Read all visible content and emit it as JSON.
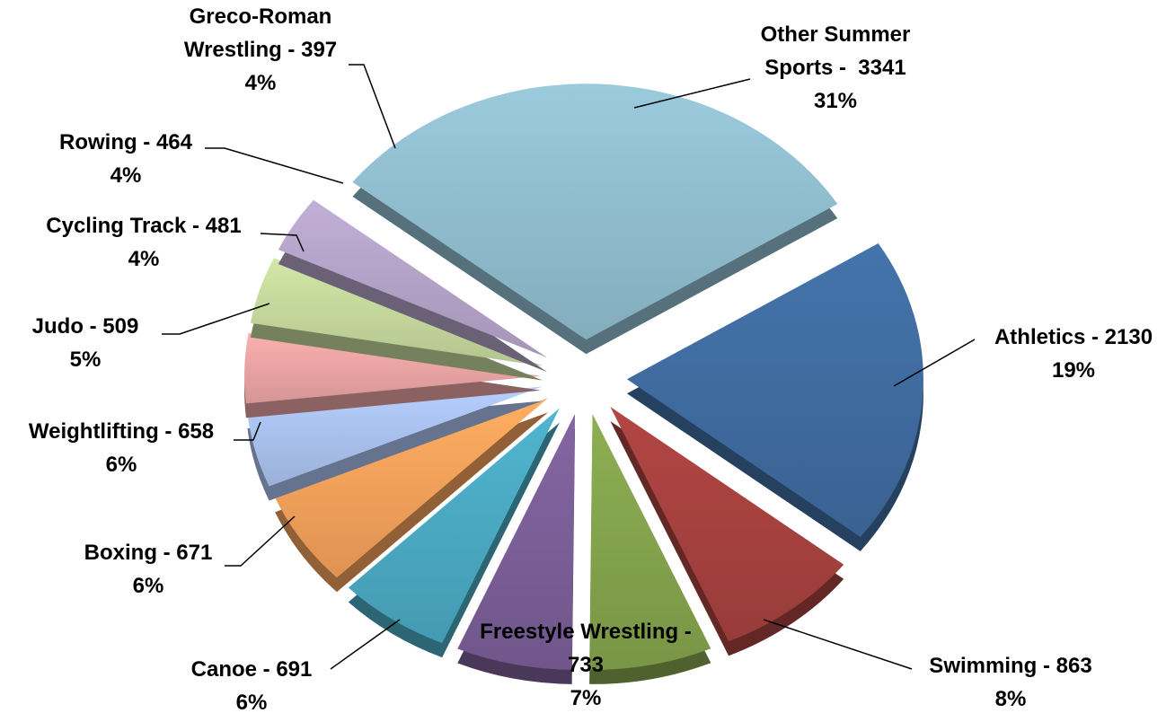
{
  "chart_data": {
    "type": "pie",
    "labels": [
      "Other Summer Sports -  3341",
      "Athletics -  2130",
      "Swimming - 863",
      "Freestyle Wrestling - 733",
      "Canoe - 691",
      "Boxing - 671",
      "Weightlifting - 658",
      "Judo - 509",
      "Cycling Track - 481",
      "Rowing - 464",
      "Greco-Roman Wrestling - 397"
    ],
    "values": [
      3341,
      2130,
      863,
      733,
      691,
      671,
      658,
      509,
      481,
      464,
      397
    ],
    "percent_labels": [
      "31%",
      "19%",
      "8%",
      "7%",
      "6%",
      "6%",
      "6%",
      "5%",
      "4%",
      "4%",
      "4%"
    ],
    "colors": [
      "#8fbccd",
      "#3f6b9f",
      "#a5413e",
      "#83a24c",
      "#7a5e96",
      "#4aa8c0",
      "#f2a05a",
      "#a8c0ec",
      "#e8a3a2",
      "#c3d69b",
      "#b3a2c7"
    ]
  }
}
